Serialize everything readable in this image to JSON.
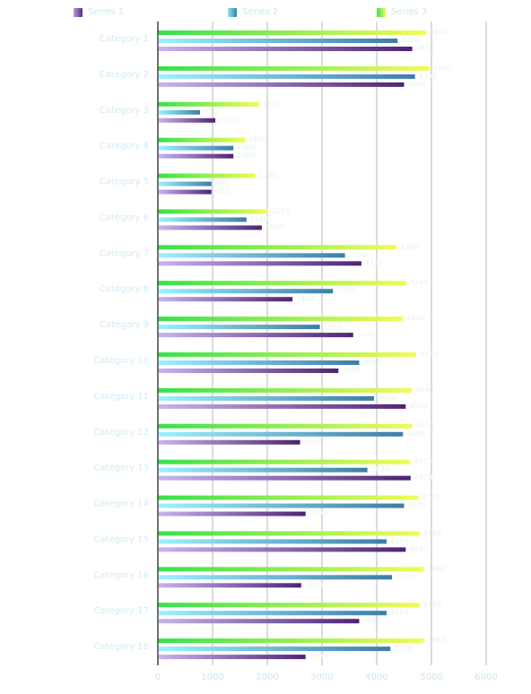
{
  "chart_data": {
    "type": "bar",
    "orientation": "horizontal",
    "title": "",
    "xlabel": "",
    "ylabel": "",
    "xlim": [
      0,
      6000
    ],
    "x_ticks": [
      "0",
      "1000",
      "2000",
      "3000",
      "4000",
      "5000",
      "6000"
    ],
    "grid": true,
    "legend_position": "top",
    "categories": [
      "Category 1",
      "Category 2",
      "Category 3",
      "Category 4",
      "Category 5",
      "Category 6",
      "Category 7",
      "Category 8",
      "Category 9",
      "Category 10",
      "Category 11",
      "Category 12",
      "Category 13",
      "Category 14",
      "Category 15",
      "Category 16",
      "Category 17",
      "Category 18"
    ],
    "series": [
      {
        "name": "Series 1",
        "color": "#7b3fa0",
        "values": [
          4650,
          4500,
          1050,
          1380,
          980,
          1900,
          3720,
          2460,
          3570,
          3300,
          4530,
          2600,
          4620,
          2700,
          4530,
          2620,
          3680,
          2700
        ]
      },
      {
        "name": "Series 2",
        "color": "#5aa9c8",
        "values": [
          4380,
          4700,
          770,
          1380,
          980,
          1620,
          3420,
          3200,
          2960,
          3680,
          3950,
          4480,
          3830,
          4500,
          4180,
          4280,
          4180,
          4250
        ]
      },
      {
        "name": "Series 3",
        "color": "#b8f23a",
        "values": [
          4900,
          4960,
          1850,
          1600,
          1780,
          2010,
          4360,
          4540,
          4480,
          4720,
          4640,
          4650,
          4610,
          4760,
          4780,
          4860,
          4780,
          4860
        ]
      }
    ]
  }
}
